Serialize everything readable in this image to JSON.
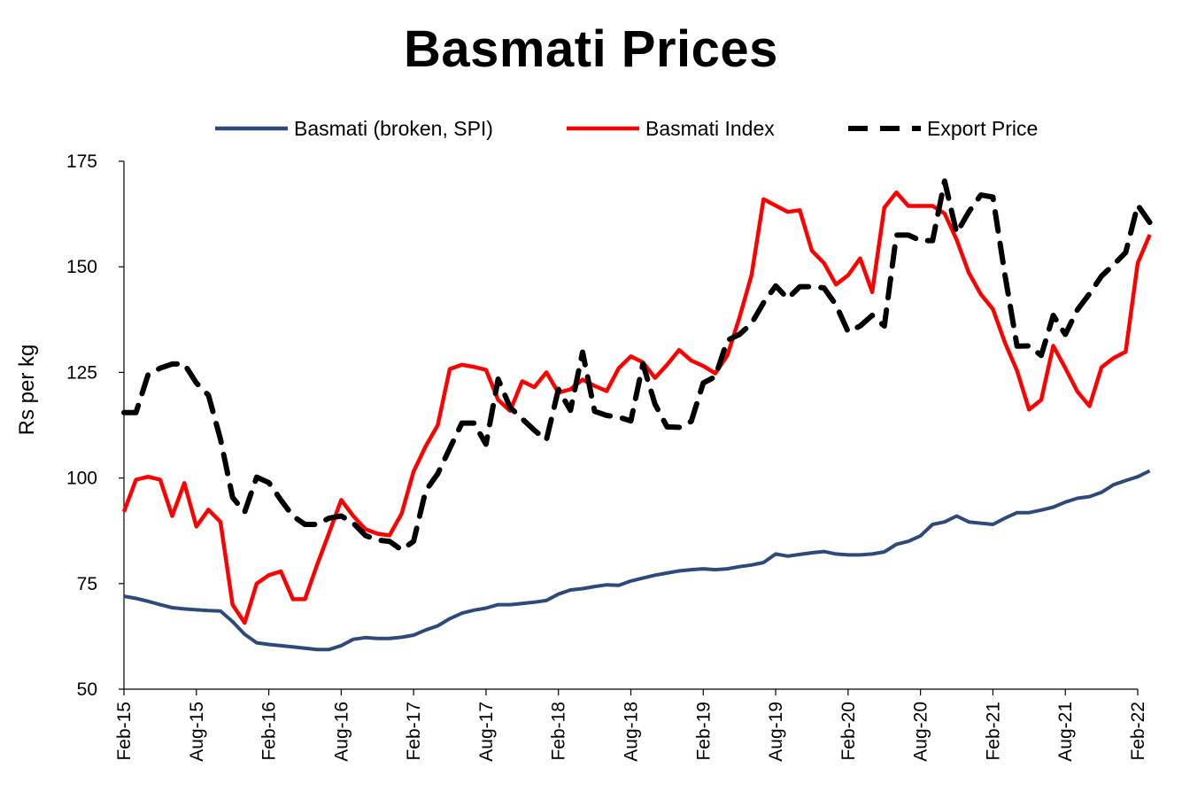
{
  "chart_data": {
    "type": "line",
    "title": "Basmati Prices",
    "xlabel": "",
    "ylabel": "Rs per kg",
    "ylim": [
      50,
      175
    ],
    "yticks": [
      50,
      75,
      100,
      125,
      150,
      175
    ],
    "x_start": "2015-02",
    "x_end": "2022-02",
    "xticks": [
      {
        "month": "2015-02",
        "label": "Feb-15"
      },
      {
        "month": "2015-08",
        "label": "Aug-15"
      },
      {
        "month": "2016-02",
        "label": "Feb-16"
      },
      {
        "month": "2016-08",
        "label": "Aug-16"
      },
      {
        "month": "2017-02",
        "label": "Feb-17"
      },
      {
        "month": "2017-08",
        "label": "Aug-17"
      },
      {
        "month": "2018-02",
        "label": "Feb-18"
      },
      {
        "month": "2018-08",
        "label": "Aug-18"
      },
      {
        "month": "2019-02",
        "label": "Feb-19"
      },
      {
        "month": "2019-08",
        "label": "Aug-19"
      },
      {
        "month": "2020-02",
        "label": "Feb-20"
      },
      {
        "month": "2020-08",
        "label": "Aug-20"
      },
      {
        "month": "2021-02",
        "label": "Feb-21"
      },
      {
        "month": "2021-08",
        "label": "Aug-21"
      },
      {
        "month": "2022-02",
        "label": "Feb-22"
      }
    ],
    "grid": false,
    "legend_position": "top",
    "series": [
      {
        "name": "Basmati (broken, SPI)",
        "color": "#2e4a7a",
        "style": "solid",
        "points": [
          [
            "2015-02",
            72
          ],
          [
            "2015-03",
            71.5
          ],
          [
            "2015-04",
            70.8
          ],
          [
            "2015-05",
            70
          ],
          [
            "2015-06",
            69.3
          ],
          [
            "2015-07",
            69
          ],
          [
            "2015-08",
            68.8
          ],
          [
            "2015-09",
            68.6
          ],
          [
            "2015-10",
            68.5
          ],
          [
            "2015-11",
            66
          ],
          [
            "2015-12",
            63
          ],
          [
            "2016-01",
            61
          ],
          [
            "2016-02",
            60.6
          ],
          [
            "2016-03",
            60.3
          ],
          [
            "2016-04",
            60
          ],
          [
            "2016-05",
            59.7
          ],
          [
            "2016-06",
            59.4
          ],
          [
            "2016-07",
            59.4
          ],
          [
            "2016-08",
            60.3
          ],
          [
            "2016-09",
            61.8
          ],
          [
            "2016-10",
            62.2
          ],
          [
            "2016-11",
            62
          ],
          [
            "2016-12",
            62
          ],
          [
            "2017-01",
            62.3
          ],
          [
            "2017-02",
            62.8
          ],
          [
            "2017-03",
            64
          ],
          [
            "2017-04",
            65
          ],
          [
            "2017-05",
            66.7
          ],
          [
            "2017-06",
            68
          ],
          [
            "2017-07",
            68.7
          ],
          [
            "2017-08",
            69.2
          ],
          [
            "2017-09",
            70
          ],
          [
            "2017-10",
            70
          ],
          [
            "2017-11",
            70.3
          ],
          [
            "2017-12",
            70.6
          ],
          [
            "2018-01",
            71
          ],
          [
            "2018-02",
            72.5
          ],
          [
            "2018-03",
            73.5
          ],
          [
            "2018-04",
            73.8
          ],
          [
            "2018-05",
            74.3
          ],
          [
            "2018-06",
            74.7
          ],
          [
            "2018-07",
            74.6
          ],
          [
            "2018-08",
            75.6
          ],
          [
            "2018-09",
            76.3
          ],
          [
            "2018-10",
            77
          ],
          [
            "2018-11",
            77.5
          ],
          [
            "2018-12",
            78
          ],
          [
            "2019-01",
            78.3
          ],
          [
            "2019-02",
            78.5
          ],
          [
            "2019-03",
            78.3
          ],
          [
            "2019-04",
            78.5
          ],
          [
            "2019-05",
            79
          ],
          [
            "2019-06",
            79.4
          ],
          [
            "2019-07",
            80
          ],
          [
            "2019-08",
            82
          ],
          [
            "2019-09",
            81.5
          ],
          [
            "2019-10",
            81.9
          ],
          [
            "2019-11",
            82.3
          ],
          [
            "2019-12",
            82.6
          ],
          [
            "2020-01",
            82
          ],
          [
            "2020-02",
            81.8
          ],
          [
            "2020-03",
            81.8
          ],
          [
            "2020-04",
            82
          ],
          [
            "2020-05",
            82.5
          ],
          [
            "2020-06",
            84.3
          ],
          [
            "2020-07",
            85
          ],
          [
            "2020-08",
            86.3
          ],
          [
            "2020-09",
            89
          ],
          [
            "2020-10",
            89.6
          ],
          [
            "2020-11",
            91
          ],
          [
            "2020-12",
            89.6
          ],
          [
            "2021-01",
            89.3
          ],
          [
            "2021-02",
            89
          ],
          [
            "2021-03",
            90.5
          ],
          [
            "2021-04",
            91.8
          ],
          [
            "2021-05",
            91.8
          ],
          [
            "2021-06",
            92.4
          ],
          [
            "2021-07",
            93.1
          ],
          [
            "2021-08",
            94.3
          ],
          [
            "2021-09",
            95.2
          ],
          [
            "2021-10",
            95.6
          ],
          [
            "2021-11",
            96.6
          ],
          [
            "2021-12",
            98.4
          ],
          [
            "2022-01",
            99.4
          ],
          [
            "2022-02",
            100.3
          ],
          [
            "2022-03",
            101.7
          ]
        ]
      },
      {
        "name": "Basmati Index",
        "color": "#ff0000",
        "style": "solid",
        "points": [
          [
            "2015-02",
            92
          ],
          [
            "2015-03",
            99.6
          ],
          [
            "2015-04",
            100.3
          ],
          [
            "2015-05",
            99.6
          ],
          [
            "2015-06",
            91
          ],
          [
            "2015-07",
            98.8
          ],
          [
            "2015-08",
            88.5
          ],
          [
            "2015-09",
            92.5
          ],
          [
            "2015-10",
            89.6
          ],
          [
            "2015-11",
            70
          ],
          [
            "2015-12",
            65.7
          ],
          [
            "2016-01",
            75
          ],
          [
            "2016-02",
            77
          ],
          [
            "2016-03",
            77.9
          ],
          [
            "2016-04",
            71.3
          ],
          [
            "2016-05",
            71.3
          ],
          [
            "2016-06",
            79.4
          ],
          [
            "2016-07",
            87
          ],
          [
            "2016-08",
            94.8
          ],
          [
            "2016-09",
            91
          ],
          [
            "2016-10",
            87.9
          ],
          [
            "2016-11",
            86.8
          ],
          [
            "2016-12",
            86.4
          ],
          [
            "2017-01",
            91.5
          ],
          [
            "2017-02",
            101.5
          ],
          [
            "2017-03",
            107.5
          ],
          [
            "2017-04",
            112.5
          ],
          [
            "2017-05",
            125.8
          ],
          [
            "2017-06",
            126.8
          ],
          [
            "2017-07",
            126.3
          ],
          [
            "2017-08",
            125.6
          ],
          [
            "2017-09",
            118.5
          ],
          [
            "2017-10",
            115.9
          ],
          [
            "2017-11",
            122.9
          ],
          [
            "2017-12",
            121.5
          ],
          [
            "2018-01",
            125
          ],
          [
            "2018-02",
            120.2
          ],
          [
            "2018-03",
            121
          ],
          [
            "2018-04",
            123.3
          ],
          [
            "2018-05",
            121.8
          ],
          [
            "2018-06",
            120.6
          ],
          [
            "2018-07",
            126
          ],
          [
            "2018-08",
            128.8
          ],
          [
            "2018-09",
            127.4
          ],
          [
            "2018-10",
            123.7
          ],
          [
            "2018-11",
            126.8
          ],
          [
            "2018-12",
            130.3
          ],
          [
            "2019-01",
            127.8
          ],
          [
            "2019-02",
            126.5
          ],
          [
            "2019-03",
            124.8
          ],
          [
            "2019-04",
            129
          ],
          [
            "2019-05",
            138
          ],
          [
            "2019-06",
            148
          ],
          [
            "2019-07",
            166
          ],
          [
            "2019-08",
            164.5
          ],
          [
            "2019-09",
            163
          ],
          [
            "2019-10",
            163.4
          ],
          [
            "2019-11",
            153.8
          ],
          [
            "2019-12",
            150.9
          ],
          [
            "2020-01",
            145.8
          ],
          [
            "2020-02",
            148
          ],
          [
            "2020-03",
            152
          ],
          [
            "2020-04",
            144
          ],
          [
            "2020-05",
            164
          ],
          [
            "2020-06",
            167.6
          ],
          [
            "2020-07",
            164.4
          ],
          [
            "2020-08",
            164.4
          ],
          [
            "2020-09",
            164.4
          ],
          [
            "2020-10",
            162.6
          ],
          [
            "2020-11",
            156.4
          ],
          [
            "2020-12",
            148.6
          ],
          [
            "2021-01",
            143.5
          ],
          [
            "2021-02",
            140
          ],
          [
            "2021-03",
            132
          ],
          [
            "2021-04",
            125.4
          ],
          [
            "2021-05",
            116.2
          ],
          [
            "2021-06",
            118.5
          ],
          [
            "2021-07",
            131.3
          ],
          [
            "2021-08",
            126
          ],
          [
            "2021-09",
            120.5
          ],
          [
            "2021-10",
            117
          ],
          [
            "2021-11",
            126.2
          ],
          [
            "2021-12",
            128.4
          ],
          [
            "2022-01",
            129.9
          ],
          [
            "2022-02",
            150.9
          ],
          [
            "2022-03",
            157.6
          ]
        ]
      },
      {
        "name": "Export Price",
        "color": "#000000",
        "style": "dashed",
        "points": [
          [
            "2015-02",
            115.5
          ],
          [
            "2015-03",
            115.5
          ],
          [
            "2015-04",
            124.5
          ],
          [
            "2015-05",
            126
          ],
          [
            "2015-06",
            127
          ],
          [
            "2015-07",
            127
          ],
          [
            "2015-08",
            122.5
          ],
          [
            "2015-09",
            119.6
          ],
          [
            "2015-10",
            109.2
          ],
          [
            "2015-11",
            95.4
          ],
          [
            "2015-12",
            91.9
          ],
          [
            "2016-01",
            100.2
          ],
          [
            "2016-02",
            98.9
          ],
          [
            "2016-03",
            94.8
          ],
          [
            "2016-04",
            91
          ],
          [
            "2016-05",
            89
          ],
          [
            "2016-06",
            89
          ],
          [
            "2016-07",
            90.5
          ],
          [
            "2016-08",
            91
          ],
          [
            "2016-09",
            89.3
          ],
          [
            "2016-10",
            86.4
          ],
          [
            "2016-11",
            85.3
          ],
          [
            "2016-12",
            85
          ],
          [
            "2017-01",
            83
          ],
          [
            "2017-02",
            85
          ],
          [
            "2017-03",
            97
          ],
          [
            "2017-04",
            101
          ],
          [
            "2017-05",
            107
          ],
          [
            "2017-06",
            113
          ],
          [
            "2017-07",
            113
          ],
          [
            "2017-08",
            108
          ],
          [
            "2017-09",
            123.4
          ],
          [
            "2017-10",
            116.7
          ],
          [
            "2017-11",
            114
          ],
          [
            "2017-12",
            111.3
          ],
          [
            "2018-01",
            109
          ],
          [
            "2018-02",
            121
          ],
          [
            "2018-03",
            116
          ],
          [
            "2018-04",
            129.8
          ],
          [
            "2018-05",
            115.8
          ],
          [
            "2018-06",
            114.8
          ],
          [
            "2018-07",
            114.4
          ],
          [
            "2018-08",
            113.5
          ],
          [
            "2018-09",
            127
          ],
          [
            "2018-10",
            117.5
          ],
          [
            "2018-11",
            112.1
          ],
          [
            "2018-12",
            112
          ],
          [
            "2019-01",
            113.4
          ],
          [
            "2019-02",
            122.5
          ],
          [
            "2019-03",
            124
          ],
          [
            "2019-04",
            132.6
          ],
          [
            "2019-05",
            134
          ],
          [
            "2019-06",
            136.6
          ],
          [
            "2019-07",
            141.5
          ],
          [
            "2019-08",
            145.5
          ],
          [
            "2019-09",
            142.5
          ],
          [
            "2019-10",
            145.3
          ],
          [
            "2019-11",
            145.3
          ],
          [
            "2019-12",
            145
          ],
          [
            "2020-01",
            141
          ],
          [
            "2020-02",
            134.6
          ],
          [
            "2020-03",
            136
          ],
          [
            "2020-04",
            138.5
          ],
          [
            "2020-05",
            136
          ],
          [
            "2020-06",
            157.5
          ],
          [
            "2020-07",
            157.5
          ],
          [
            "2020-08",
            156.2
          ],
          [
            "2020-09",
            156.2
          ],
          [
            "2020-10",
            170.3
          ],
          [
            "2020-11",
            158
          ],
          [
            "2020-12",
            163
          ],
          [
            "2021-01",
            167
          ],
          [
            "2021-02",
            166.5
          ],
          [
            "2021-03",
            148
          ],
          [
            "2021-04",
            131.2
          ],
          [
            "2021-05",
            131.3
          ],
          [
            "2021-06",
            129
          ],
          [
            "2021-07",
            138.5
          ],
          [
            "2021-08",
            134
          ],
          [
            "2021-09",
            139.8
          ],
          [
            "2021-10",
            143.6
          ],
          [
            "2021-11",
            147.8
          ],
          [
            "2021-12",
            150.5
          ],
          [
            "2022-01",
            153.4
          ],
          [
            "2022-02",
            164.6
          ],
          [
            "2022-03",
            160.5
          ]
        ]
      }
    ]
  }
}
